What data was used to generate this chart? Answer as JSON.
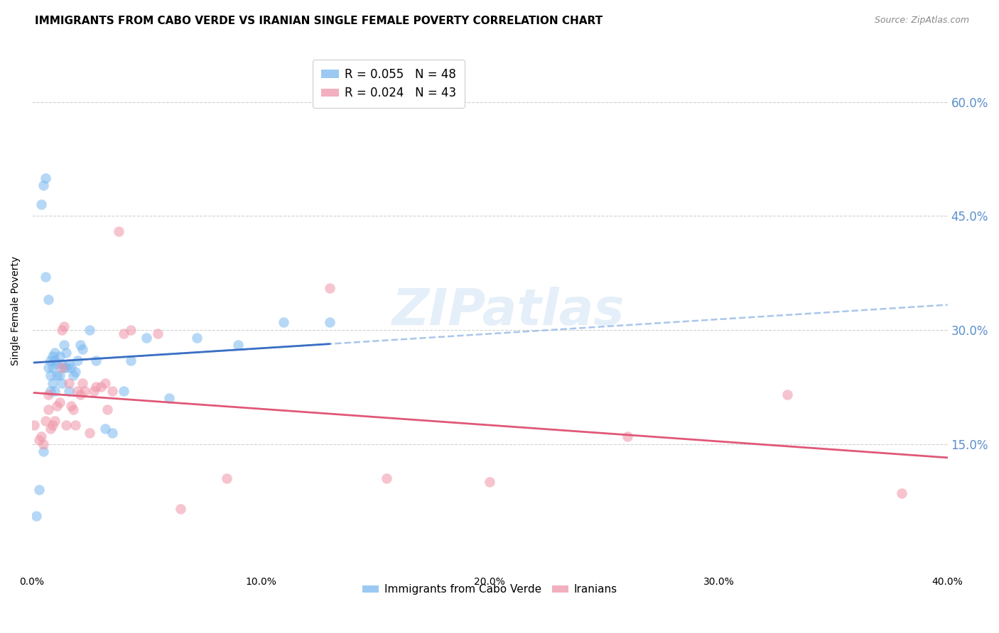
{
  "title": "IMMIGRANTS FROM CABO VERDE VS IRANIAN SINGLE FEMALE POVERTY CORRELATION CHART",
  "source": "Source: ZipAtlas.com",
  "cabo_verde_color": "#7ab8f0",
  "iranians_color": "#f095a8",
  "trend1_color": "#3a6fc4",
  "trend2_color": "#e05878",
  "trend1_dash_color": "#9bbce8",
  "watermark": "ZIPatlas",
  "xlim": [
    0.0,
    0.4
  ],
  "ylim": [
    -0.02,
    0.67
  ],
  "xlabel_tick_vals": [
    0.0,
    0.1,
    0.2,
    0.3,
    0.4
  ],
  "xlabel_tick_labels": [
    "0.0%",
    "10.0%",
    "20.0%",
    "30.0%",
    "40.0%"
  ],
  "right_ytick_vals": [
    0.15,
    0.3,
    0.45,
    0.6
  ],
  "right_ytick_labels": [
    "15.0%",
    "30.0%",
    "45.0%",
    "60.0%"
  ],
  "grid_color": "#cccccc",
  "background_color": "#ffffff",
  "title_fontsize": 11,
  "tick_fontsize": 10,
  "right_ytick_color": "#5b8fcc",
  "cabo_verde_x": [
    0.002,
    0.003,
    0.004,
    0.005,
    0.005,
    0.006,
    0.006,
    0.007,
    0.007,
    0.008,
    0.008,
    0.008,
    0.009,
    0.009,
    0.009,
    0.01,
    0.01,
    0.01,
    0.011,
    0.011,
    0.012,
    0.012,
    0.013,
    0.013,
    0.014,
    0.014,
    0.015,
    0.015,
    0.016,
    0.016,
    0.017,
    0.018,
    0.019,
    0.02,
    0.021,
    0.022,
    0.025,
    0.028,
    0.032,
    0.035,
    0.04,
    0.043,
    0.05,
    0.06,
    0.072,
    0.09,
    0.11,
    0.13
  ],
  "cabo_verde_y": [
    0.055,
    0.09,
    0.465,
    0.49,
    0.14,
    0.5,
    0.37,
    0.34,
    0.25,
    0.26,
    0.24,
    0.22,
    0.265,
    0.25,
    0.23,
    0.27,
    0.26,
    0.22,
    0.255,
    0.24,
    0.265,
    0.24,
    0.23,
    0.255,
    0.25,
    0.28,
    0.27,
    0.25,
    0.255,
    0.22,
    0.25,
    0.24,
    0.245,
    0.26,
    0.28,
    0.275,
    0.3,
    0.26,
    0.17,
    0.165,
    0.22,
    0.26,
    0.29,
    0.21,
    0.29,
    0.28,
    0.31,
    0.31
  ],
  "iranians_x": [
    0.001,
    0.003,
    0.004,
    0.005,
    0.006,
    0.007,
    0.007,
    0.008,
    0.009,
    0.01,
    0.011,
    0.012,
    0.013,
    0.013,
    0.014,
    0.015,
    0.016,
    0.017,
    0.018,
    0.019,
    0.02,
    0.021,
    0.022,
    0.023,
    0.025,
    0.027,
    0.028,
    0.03,
    0.032,
    0.033,
    0.035,
    0.038,
    0.04,
    0.043,
    0.055,
    0.065,
    0.085,
    0.13,
    0.155,
    0.2,
    0.26,
    0.33,
    0.38
  ],
  "iranians_y": [
    0.175,
    0.155,
    0.16,
    0.15,
    0.18,
    0.215,
    0.195,
    0.17,
    0.175,
    0.18,
    0.2,
    0.205,
    0.3,
    0.25,
    0.305,
    0.175,
    0.23,
    0.2,
    0.195,
    0.175,
    0.22,
    0.215,
    0.23,
    0.22,
    0.165,
    0.22,
    0.225,
    0.225,
    0.23,
    0.195,
    0.22,
    0.43,
    0.295,
    0.3,
    0.295,
    0.065,
    0.105,
    0.355,
    0.105,
    0.1,
    0.16,
    0.215,
    0.085
  ],
  "legend1_label": "R = 0.055   N = 48",
  "legend2_label": "R = 0.024   N = 43",
  "bottom_legend1": "Immigrants from Cabo Verde",
  "bottom_legend2": "Iranians"
}
